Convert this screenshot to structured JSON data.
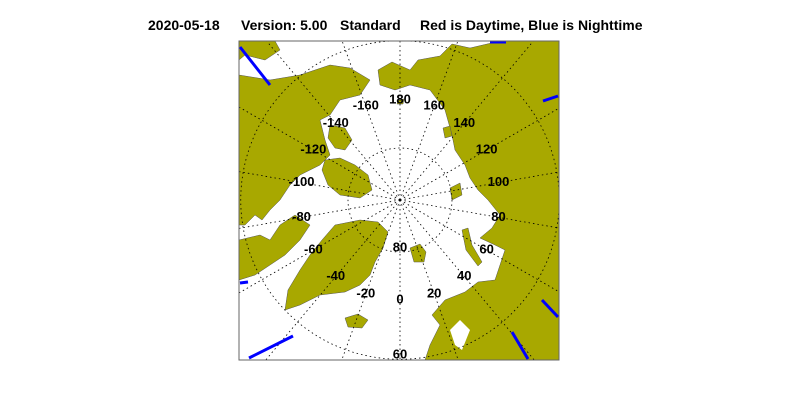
{
  "title": {
    "date": "2020-05-18",
    "version": "Version: 5.00",
    "mode": "Standard",
    "legend": "Red is Daytime, Blue is Nighttime"
  },
  "map": {
    "projection": "north polar stereographic",
    "land_color": "#a8a800",
    "ocean_color": "#ffffff",
    "night_line_color": "#0000ff",
    "latitude_labels": [
      "80",
      "60"
    ],
    "longitude_labels": [
      "0",
      "20",
      "40",
      "60",
      "80",
      "100",
      "120",
      "140",
      "160",
      "180",
      "-160",
      "-140",
      "-120",
      "-100",
      "-80",
      "-60",
      "-40",
      "-20"
    ]
  }
}
